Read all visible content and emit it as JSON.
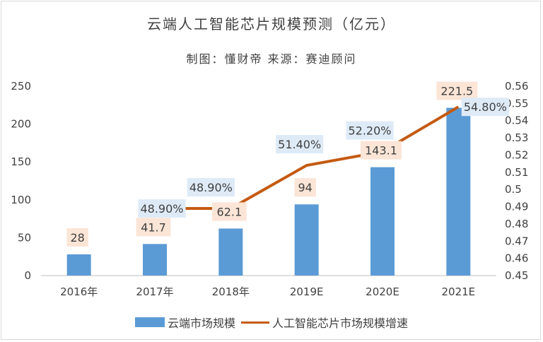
{
  "chart_data": {
    "type": "bar",
    "title": "云端人工智能芯片规模预测（亿元）",
    "subtitle": "制图：懂财帝   来源：赛迪顾问",
    "categories": [
      "2016年",
      "2017年",
      "2018年",
      "2019E",
      "2020E",
      "2021E"
    ],
    "series": [
      {
        "name": "云端市场规模",
        "type": "bar",
        "axis": "left",
        "values": [
          28,
          41.7,
          62.1,
          94,
          143.1,
          221.5
        ],
        "labels": [
          "28",
          "41.7",
          "62.1",
          "94",
          "143.1",
          "221.5"
        ]
      },
      {
        "name": "人工智能芯片市场规模增速",
        "type": "line",
        "axis": "right",
        "values": [
          null,
          0.489,
          0.489,
          0.514,
          0.522,
          0.548
        ],
        "labels": [
          "",
          "48.90%",
          "48.90%",
          "51.40%",
          "52.20%",
          "54.80%"
        ]
      }
    ],
    "ylim_left": [
      0,
      250
    ],
    "yticks_left": [
      "0",
      "50",
      "100",
      "150",
      "200",
      "250"
    ],
    "ylim_right": [
      0.45,
      0.56
    ],
    "yticks_right": [
      "0.45",
      "0.46",
      "0.47",
      "0.48",
      "0.49",
      "0.5",
      "0.51",
      "0.52",
      "0.53",
      "0.54",
      "0.55",
      "0.56"
    ],
    "legend_position": "bottom",
    "grid": false,
    "colors": {
      "bar": "#5b9bd5",
      "line": "#c55a11",
      "bar_label_bg": "#fbe5d6",
      "line_label_bg": "#deebf7",
      "text": "#404040"
    }
  }
}
